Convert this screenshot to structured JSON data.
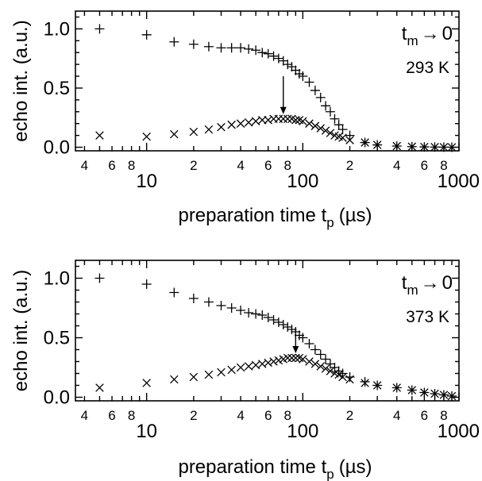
{
  "chart_data": [
    {
      "type": "scatter",
      "xlabel": "preparation time t",
      "xlabel_sub": "p",
      "xlabel_unit": "(µs)",
      "ylabel": "echo int. (a.u.)",
      "xscale": "log",
      "xlim": [
        3.5,
        1000
      ],
      "ylim": [
        -0.03,
        1.15
      ],
      "x_major_ticks": [
        10,
        100,
        1000
      ],
      "x_major_labels": [
        "10",
        "100",
        "1000"
      ],
      "x_minor_labels": [
        {
          "x": 4,
          "label": "4"
        },
        {
          "x": 6,
          "label": "6"
        },
        {
          "x": 8,
          "label": "8"
        },
        {
          "x": 20,
          "label": "2"
        },
        {
          "x": 40,
          "label": "4"
        },
        {
          "x": 60,
          "label": "6"
        },
        {
          "x": 80,
          "label": "8"
        },
        {
          "x": 200,
          "label": "2"
        },
        {
          "x": 400,
          "label": "4"
        },
        {
          "x": 600,
          "label": "6"
        },
        {
          "x": 800,
          "label": "8"
        }
      ],
      "y_major_ticks": [
        0.0,
        0.5,
        1.0
      ],
      "y_major_labels": [
        "0.0",
        "0.5",
        "1.0"
      ],
      "annotation": {
        "t": "t",
        "sub": "m",
        "arrow": "→",
        "zero": "0"
      },
      "temperature": "293 K",
      "arrow_marker": {
        "x": 75,
        "y_from": 0.6,
        "y_to": 0.28
      },
      "series": [
        {
          "marker": "plus",
          "x": [
            5,
            10,
            15,
            20,
            25,
            30,
            35,
            40,
            45,
            50,
            55,
            60,
            65,
            70,
            75,
            80,
            85,
            90,
            95,
            100,
            110,
            120,
            130,
            140,
            150,
            160,
            170,
            180,
            200,
            250,
            300,
            400,
            500,
            600,
            700,
            800,
            900
          ],
          "y": [
            1.0,
            0.95,
            0.89,
            0.87,
            0.85,
            0.84,
            0.84,
            0.84,
            0.83,
            0.82,
            0.8,
            0.79,
            0.77,
            0.75,
            0.73,
            0.7,
            0.68,
            0.65,
            0.62,
            0.6,
            0.55,
            0.48,
            0.42,
            0.35,
            0.3,
            0.24,
            0.19,
            0.15,
            0.1,
            0.04,
            0.02,
            0.01,
            0.005,
            0.003,
            0.002,
            0.001,
            0.0
          ]
        },
        {
          "marker": "cross",
          "x": [
            5,
            10,
            15,
            20,
            25,
            30,
            35,
            40,
            45,
            50,
            55,
            60,
            65,
            70,
            75,
            80,
            85,
            90,
            95,
            100,
            110,
            120,
            130,
            140,
            150,
            160,
            170,
            180,
            200,
            250,
            300,
            400,
            500,
            600,
            700,
            800,
            900
          ],
          "y": [
            0.1,
            0.09,
            0.11,
            0.13,
            0.15,
            0.17,
            0.19,
            0.2,
            0.21,
            0.22,
            0.23,
            0.23,
            0.24,
            0.24,
            0.24,
            0.24,
            0.24,
            0.23,
            0.23,
            0.22,
            0.2,
            0.18,
            0.16,
            0.14,
            0.12,
            0.1,
            0.09,
            0.08,
            0.06,
            0.04,
            0.02,
            0.01,
            0.005,
            0.003,
            0.002,
            0.001,
            0.0
          ]
        }
      ]
    },
    {
      "type": "scatter",
      "xlabel": "preparation time t",
      "xlabel_sub": "p",
      "xlabel_unit": "(µs)",
      "ylabel": "echo int. (a.u.)",
      "xscale": "log",
      "xlim": [
        3.5,
        1000
      ],
      "ylim": [
        -0.03,
        1.15
      ],
      "x_major_ticks": [
        10,
        100,
        1000
      ],
      "x_major_labels": [
        "10",
        "100",
        "1000"
      ],
      "x_minor_labels": [
        {
          "x": 4,
          "label": "4"
        },
        {
          "x": 6,
          "label": "6"
        },
        {
          "x": 8,
          "label": "8"
        },
        {
          "x": 20,
          "label": "2"
        },
        {
          "x": 40,
          "label": "4"
        },
        {
          "x": 60,
          "label": "6"
        },
        {
          "x": 80,
          "label": "8"
        },
        {
          "x": 200,
          "label": "2"
        },
        {
          "x": 400,
          "label": "4"
        },
        {
          "x": 600,
          "label": "6"
        },
        {
          "x": 800,
          "label": "8"
        }
      ],
      "y_major_ticks": [
        0.0,
        0.5,
        1.0
      ],
      "y_major_labels": [
        "0.0",
        "0.5",
        "1.0"
      ],
      "annotation": {
        "t": "t",
        "sub": "m",
        "arrow": "→",
        "zero": "0"
      },
      "temperature": "373 K",
      "arrow_marker": {
        "x": 90,
        "y_from": 0.58,
        "y_to": 0.37
      },
      "series": [
        {
          "marker": "plus",
          "x": [
            5,
            10,
            15,
            20,
            25,
            30,
            35,
            40,
            45,
            50,
            55,
            60,
            65,
            70,
            75,
            80,
            85,
            90,
            95,
            100,
            110,
            120,
            130,
            140,
            150,
            160,
            170,
            180,
            200,
            250,
            300,
            400,
            500,
            600,
            700,
            800,
            900
          ],
          "y": [
            1.0,
            0.95,
            0.88,
            0.83,
            0.8,
            0.77,
            0.75,
            0.73,
            0.71,
            0.7,
            0.69,
            0.67,
            0.65,
            0.63,
            0.61,
            0.59,
            0.57,
            0.55,
            0.52,
            0.5,
            0.45,
            0.4,
            0.36,
            0.32,
            0.28,
            0.25,
            0.22,
            0.2,
            0.17,
            0.13,
            0.1,
            0.08,
            0.06,
            0.04,
            0.03,
            0.02,
            0.01
          ]
        },
        {
          "marker": "cross",
          "x": [
            5,
            10,
            15,
            20,
            25,
            30,
            35,
            40,
            45,
            50,
            55,
            60,
            65,
            70,
            75,
            80,
            85,
            90,
            95,
            100,
            110,
            120,
            130,
            140,
            150,
            160,
            170,
            180,
            200,
            250,
            300,
            400,
            500,
            600,
            700,
            800,
            900
          ],
          "y": [
            0.08,
            0.12,
            0.15,
            0.17,
            0.19,
            0.21,
            0.23,
            0.25,
            0.26,
            0.27,
            0.28,
            0.29,
            0.3,
            0.31,
            0.32,
            0.33,
            0.33,
            0.33,
            0.33,
            0.32,
            0.3,
            0.28,
            0.26,
            0.24,
            0.22,
            0.2,
            0.19,
            0.17,
            0.15,
            0.12,
            0.1,
            0.08,
            0.06,
            0.04,
            0.03,
            0.02,
            0.01
          ]
        }
      ]
    }
  ]
}
